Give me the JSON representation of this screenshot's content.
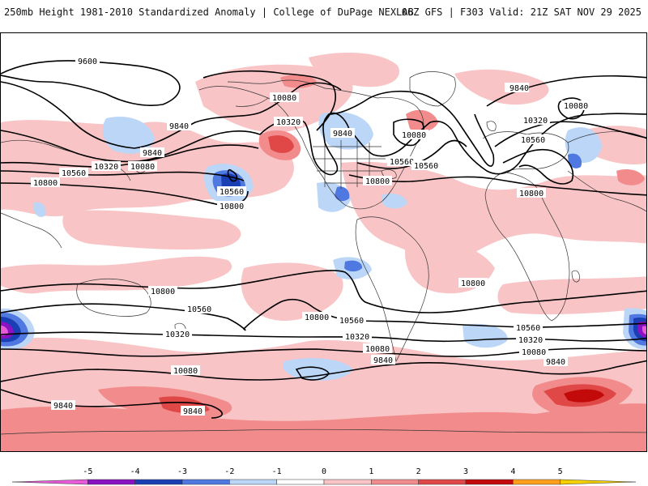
{
  "header": {
    "title_left": "250mb Height 1981-2010 Standardized Anomaly | College of DuPage NEXLAB",
    "title_right": "06Z GFS | F303 Valid: 21Z SAT NOV 29 2025"
  },
  "colorbar": {
    "ticks": [
      "-5",
      "-4",
      "-3",
      "-2",
      "-1",
      "0",
      "1",
      "2",
      "3",
      "4",
      "5"
    ],
    "colors": [
      "#e75ad8",
      "#8a12c2",
      "#1a3fb4",
      "#4f78e0",
      "#bcd6f7",
      "#ffffff",
      "#f9c4c6",
      "#f28c8c",
      "#e04848",
      "#c20a0a",
      "#ff9f1c",
      "#f5d000"
    ]
  },
  "contour_labels": [
    "9600",
    "9840",
    "10080",
    "10320",
    "10560",
    "10800",
    "9840",
    "10080",
    "10560",
    "10800",
    "9840",
    "10080",
    "10320",
    "10560",
    "10800",
    "10080",
    "10320",
    "10560",
    "10800",
    "10560",
    "10320",
    "10080",
    "9840",
    "10800",
    "10560",
    "10320",
    "10080",
    "9840",
    "10800",
    "10800",
    "10560",
    "10320",
    "10080",
    "9840"
  ],
  "anomaly_colors": {
    "pos_light": "#f9c4c6",
    "pos_med": "#f28c8c",
    "pos_strong": "#e04848",
    "pos_max": "#c20a0a",
    "neg_light": "#bcd6f7",
    "neg_med": "#4f78e0",
    "neg_strong": "#1a3fb4",
    "neg_max": "#8a12c2",
    "neg_extreme": "#e75ad8"
  }
}
